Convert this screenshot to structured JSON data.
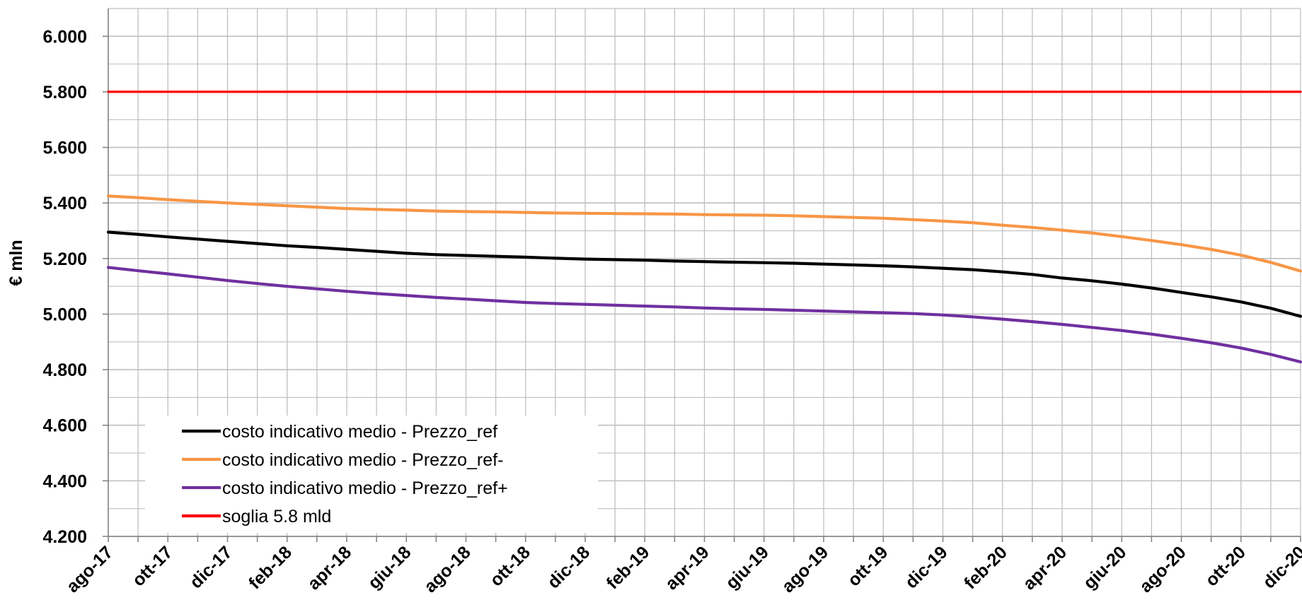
{
  "chart_data": {
    "type": "line",
    "ylabel": "€ mln",
    "ylim": [
      4200,
      6100
    ],
    "yticks": [
      4200,
      4400,
      4600,
      4800,
      5000,
      5200,
      5400,
      5600,
      5800,
      6000
    ],
    "ytick_labels": [
      "4.200",
      "4.400",
      "4.600",
      "4.800",
      "5.000",
      "5.200",
      "5.400",
      "5.600",
      "5.800",
      "6.000"
    ],
    "x": [
      "ago-17",
      "set-17",
      "ott-17",
      "nov-17",
      "dic-17",
      "gen-18",
      "feb-18",
      "mar-18",
      "apr-18",
      "mag-18",
      "giu-18",
      "lug-18",
      "ago-18",
      "set-18",
      "ott-18",
      "nov-18",
      "dic-18",
      "gen-19",
      "feb-19",
      "mar-19",
      "apr-19",
      "mag-19",
      "giu-19",
      "lug-19",
      "ago-19",
      "set-19",
      "ott-19",
      "nov-19",
      "dic-19",
      "gen-20",
      "feb-20",
      "mar-20",
      "apr-20",
      "mag-20",
      "giu-20",
      "lug-20",
      "ago-20",
      "set-20",
      "ott-20",
      "nov-20",
      "dic-20"
    ],
    "xtick_labels": [
      "ago-17",
      "ott-17",
      "dic-17",
      "feb-18",
      "apr-18",
      "giu-18",
      "ago-18",
      "ott-18",
      "dic-18",
      "feb-19",
      "apr-19",
      "giu-19",
      "ago-19",
      "ott-19",
      "dic-19",
      "feb-20",
      "apr-20",
      "giu-20",
      "ago-20",
      "ott-20",
      "dic-20"
    ],
    "grid": true,
    "legend_position": "bottom-left",
    "series": [
      {
        "name": "costo indicativo medio - Prezzo_ref",
        "color": "#000000",
        "values": [
          5295,
          5287,
          5278,
          5270,
          5262,
          5254,
          5246,
          5240,
          5233,
          5226,
          5219,
          5214,
          5211,
          5208,
          5205,
          5201,
          5198,
          5196,
          5194,
          5191,
          5189,
          5187,
          5185,
          5183,
          5180,
          5177,
          5174,
          5170,
          5165,
          5160,
          5152,
          5143,
          5130,
          5120,
          5108,
          5094,
          5078,
          5062,
          5044,
          5021,
          4992
        ]
      },
      {
        "name": "costo indicativo medio - Prezzo_ref-",
        "color": "#F79646",
        "values": [
          5425,
          5419,
          5412,
          5406,
          5400,
          5395,
          5390,
          5385,
          5380,
          5377,
          5374,
          5371,
          5369,
          5368,
          5366,
          5364,
          5363,
          5362,
          5361,
          5360,
          5358,
          5357,
          5356,
          5354,
          5351,
          5348,
          5345,
          5340,
          5335,
          5329,
          5320,
          5312,
          5302,
          5292,
          5279,
          5265,
          5250,
          5233,
          5212,
          5186,
          5155
        ]
      },
      {
        "name": "costo indicativo medio - Prezzo_ref+",
        "color": "#7030A0",
        "values": [
          5168,
          5156,
          5145,
          5133,
          5121,
          5110,
          5100,
          5091,
          5082,
          5074,
          5067,
          5060,
          5054,
          5048,
          5042,
          5038,
          5035,
          5032,
          5029,
          5026,
          5022,
          5019,
          5017,
          5014,
          5011,
          5008,
          5005,
          5002,
          4997,
          4990,
          4982,
          4973,
          4963,
          4952,
          4941,
          4928,
          4913,
          4897,
          4878,
          4855,
          4828
        ]
      },
      {
        "name": "soglia 5.8 mld",
        "color": "#FF0000",
        "values": [
          5800,
          5800,
          5800,
          5800,
          5800,
          5800,
          5800,
          5800,
          5800,
          5800,
          5800,
          5800,
          5800,
          5800,
          5800,
          5800,
          5800,
          5800,
          5800,
          5800,
          5800,
          5800,
          5800,
          5800,
          5800,
          5800,
          5800,
          5800,
          5800,
          5800,
          5800,
          5800,
          5800,
          5800,
          5800,
          5800,
          5800,
          5800,
          5800,
          5800,
          5800
        ]
      }
    ]
  }
}
